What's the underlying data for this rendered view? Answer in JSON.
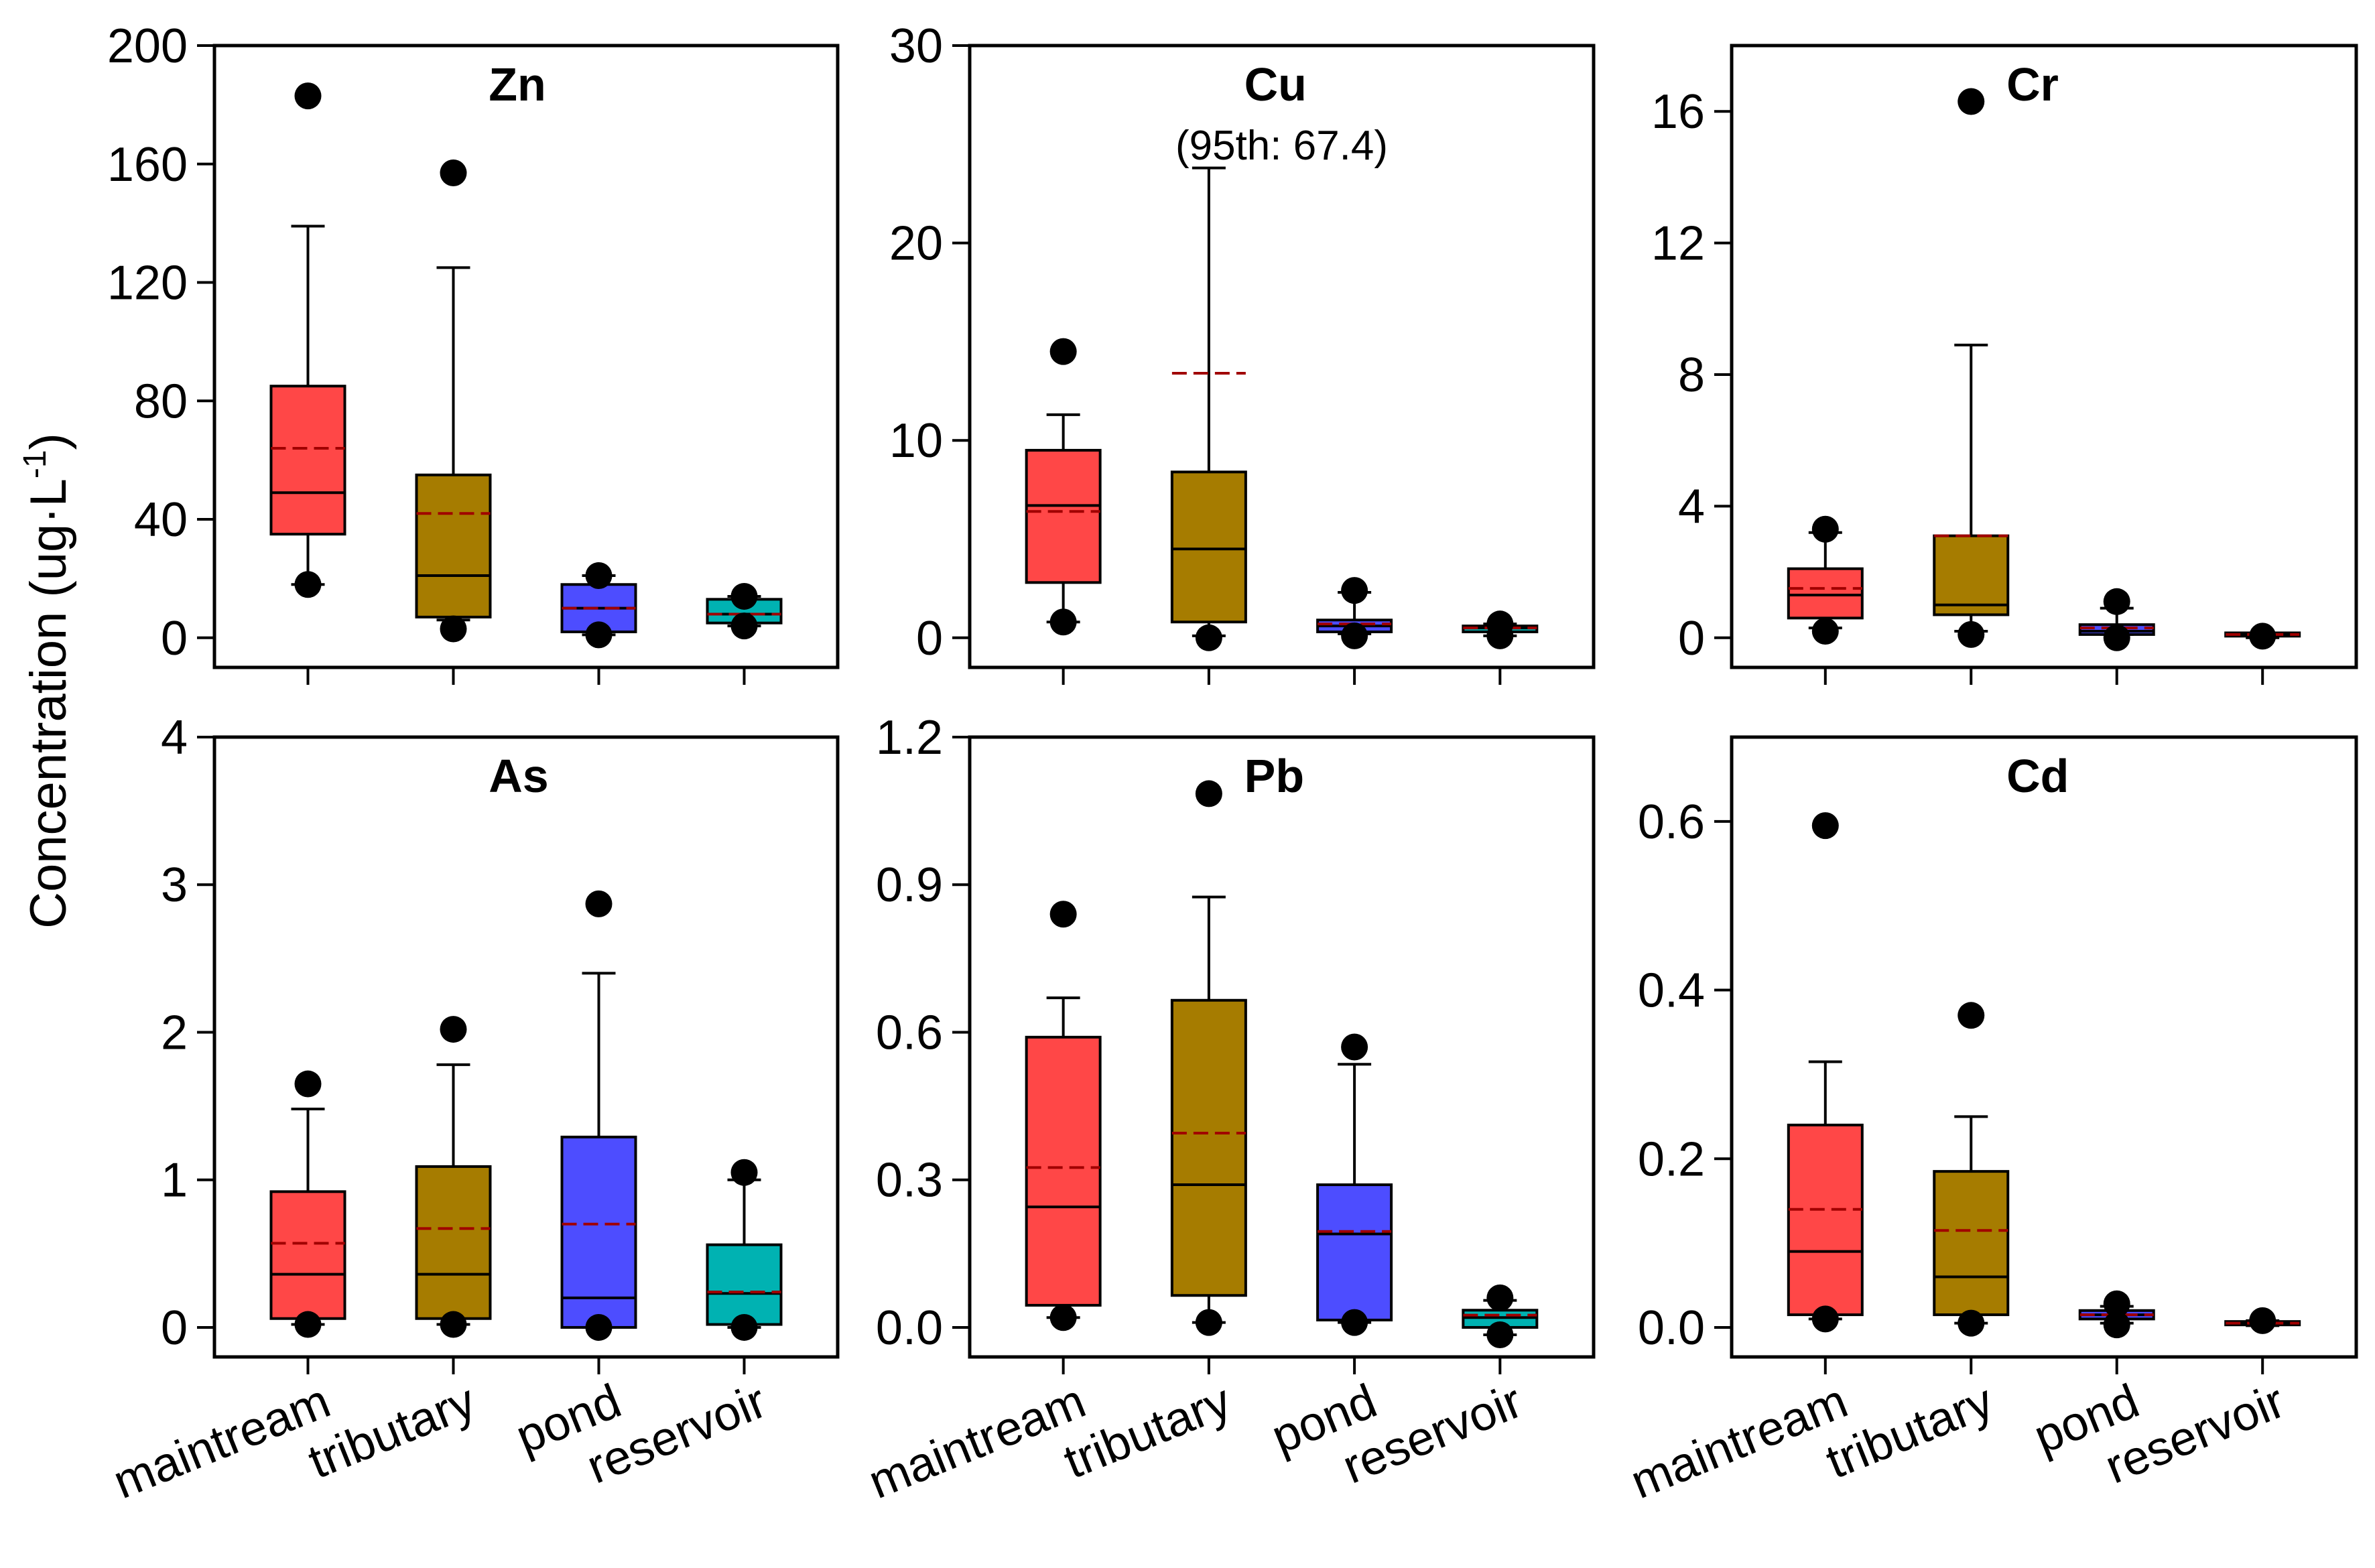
{
  "figure": {
    "ylabel": "Concentration (ug·L",
    "ylabel_sup": "-1",
    "ylabel_end": ")"
  },
  "chart_data": [
    {
      "type": "box",
      "title": "Zn",
      "categories": [
        "maintream",
        "tributary",
        "pond",
        "reservoir"
      ],
      "colors": [
        "#ff4747",
        "#a67c00",
        "#4d4dff",
        "#00b2b2"
      ],
      "ylim": [
        -10,
        200
      ],
      "yticks": [
        0,
        40,
        80,
        120,
        160,
        200
      ],
      "tick_labels": [
        "0",
        "40",
        "80",
        "120",
        "160",
        "200"
      ],
      "boxes": [
        {
          "whislo": 18,
          "q1": 35,
          "med": 49,
          "mean": 64,
          "q3": 85,
          "whishi": 139,
          "fliers": [
            18,
            183
          ]
        },
        {
          "whislo": 6,
          "q1": 7,
          "med": 21,
          "mean": 42,
          "q3": 55,
          "whishi": 125,
          "fliers": [
            3,
            157
          ]
        },
        {
          "whislo": 1,
          "q1": 2,
          "med": 10,
          "mean": 10,
          "q3": 18,
          "whishi": 21,
          "fliers": [
            1,
            21
          ]
        },
        {
          "whislo": 4,
          "q1": 5,
          "med": 8,
          "mean": 8,
          "q3": 13,
          "whishi": 14,
          "fliers": [
            4,
            14
          ]
        }
      ]
    },
    {
      "type": "box",
      "title": "Cu",
      "annotation": "(95th: 67.4)",
      "categories": [
        "maintream",
        "tributary",
        "pond",
        "reservoir"
      ],
      "colors": [
        "#ff4747",
        "#a67c00",
        "#4d4dff",
        "#00b2b2"
      ],
      "ylim": [
        -1.5,
        30
      ],
      "yticks": [
        0,
        10,
        20,
        30
      ],
      "tick_labels": [
        "0",
        "10",
        "20",
        "30"
      ],
      "boxes": [
        {
          "whislo": 0.8,
          "q1": 2.8,
          "med": 6.7,
          "mean": 6.4,
          "q3": 9.5,
          "whishi": 11.3,
          "fliers": [
            0.8,
            14.5
          ]
        },
        {
          "whislo": 0.1,
          "q1": 0.8,
          "med": 4.5,
          "mean": 13.4,
          "q3": 8.4,
          "whishi": 23.8,
          "fliers": [
            0.0
          ]
        },
        {
          "whislo": 0.2,
          "q1": 0.3,
          "med": 0.6,
          "mean": 0.7,
          "q3": 0.9,
          "whishi": 2.3,
          "fliers": [
            0.1,
            2.4
          ]
        },
        {
          "whislo": 0.1,
          "q1": 0.3,
          "med": 0.5,
          "mean": 0.5,
          "q3": 0.6,
          "whishi": 0.7,
          "fliers": [
            0.1,
            0.7
          ]
        }
      ]
    },
    {
      "type": "box",
      "title": "Cr",
      "categories": [
        "maintream",
        "tributary",
        "pond",
        "reservoir"
      ],
      "colors": [
        "#ff4747",
        "#a67c00",
        "#4d4dff",
        "#00b2b2"
      ],
      "ylim": [
        -0.9,
        18
      ],
      "yticks": [
        0,
        4,
        8,
        12,
        16
      ],
      "tick_labels": [
        "0",
        "4",
        "8",
        "12",
        "16"
      ],
      "boxes": [
        {
          "whislo": 0.3,
          "q1": 0.6,
          "med": 1.3,
          "mean": 1.5,
          "q3": 2.1,
          "whishi": 3.2,
          "fliers": [
            0.2,
            3.3
          ]
        },
        {
          "whislo": 0.2,
          "q1": 0.7,
          "med": 1.0,
          "mean": 3.1,
          "q3": 3.1,
          "whishi": 8.9,
          "fliers": [
            0.1,
            16.3
          ]
        },
        {
          "whislo": 0.1,
          "q1": 0.1,
          "med": 0.2,
          "mean": 0.3,
          "q3": 0.4,
          "whishi": 0.9,
          "fliers": [
            0.0,
            1.1
          ]
        },
        {
          "whislo": 0.0,
          "q1": 0.05,
          "med": 0.1,
          "mean": 0.1,
          "q3": 0.15,
          "whishi": 0.15,
          "fliers": [
            0.05
          ]
        }
      ]
    },
    {
      "type": "box",
      "title": "As",
      "categories": [
        "maintream",
        "tributary",
        "pond",
        "reservoir"
      ],
      "colors": [
        "#ff4747",
        "#a67c00",
        "#4d4dff",
        "#00b2b2"
      ],
      "ylim": [
        -0.2,
        4
      ],
      "yticks": [
        0,
        1,
        2,
        3,
        4
      ],
      "tick_labels": [
        "0",
        "1",
        "2",
        "3",
        "4"
      ],
      "boxes": [
        {
          "whislo": 0.02,
          "q1": 0.06,
          "med": 0.36,
          "mean": 0.57,
          "q3": 0.92,
          "whishi": 1.48,
          "fliers": [
            0.02,
            1.65
          ]
        },
        {
          "whislo": 0.02,
          "q1": 0.06,
          "med": 0.36,
          "mean": 0.67,
          "q3": 1.09,
          "whishi": 1.78,
          "fliers": [
            0.02,
            2.02
          ]
        },
        {
          "whislo": 0.0,
          "q1": 0.0,
          "med": 0.2,
          "mean": 0.7,
          "q3": 1.29,
          "whishi": 2.4,
          "fliers": [
            0.0,
            2.87
          ]
        },
        {
          "whislo": 0.0,
          "q1": 0.02,
          "med": 0.23,
          "mean": 0.24,
          "q3": 0.56,
          "whishi": 1.0,
          "fliers": [
            0.0,
            1.05
          ]
        }
      ]
    },
    {
      "type": "box",
      "title": "Pb",
      "categories": [
        "maintream",
        "tributary",
        "pond",
        "reservoir"
      ],
      "colors": [
        "#ff4747",
        "#a67c00",
        "#4d4dff",
        "#00b2b2"
      ],
      "ylim": [
        -0.06,
        1.2
      ],
      "yticks": [
        0.0,
        0.3,
        0.6,
        0.9,
        1.2
      ],
      "tick_labels": [
        "0.0",
        "0.3",
        "0.6",
        "0.9",
        "1.2"
      ],
      "boxes": [
        {
          "whislo": 0.02,
          "q1": 0.045,
          "med": 0.245,
          "mean": 0.325,
          "q3": 0.59,
          "whishi": 0.67,
          "fliers": [
            0.02,
            0.84
          ]
        },
        {
          "whislo": 0.01,
          "q1": 0.065,
          "med": 0.29,
          "mean": 0.395,
          "q3": 0.665,
          "whishi": 0.875,
          "fliers": [
            0.01,
            1.085
          ]
        },
        {
          "whislo": 0.01,
          "q1": 0.015,
          "med": 0.19,
          "mean": 0.195,
          "q3": 0.29,
          "whishi": 0.535,
          "fliers": [
            0.01,
            0.57
          ]
        },
        {
          "whislo": -0.015,
          "q1": 0.0,
          "med": 0.02,
          "mean": 0.025,
          "q3": 0.035,
          "whishi": 0.055,
          "fliers": [
            -0.015,
            0.06
          ]
        }
      ]
    },
    {
      "type": "box",
      "title": "Cd",
      "categories": [
        "maintream",
        "tributary",
        "pond",
        "reservoir"
      ],
      "colors": [
        "#ff4747",
        "#a67c00",
        "#4d4dff",
        "#00b2b2"
      ],
      "ylim": [
        -0.035,
        0.7
      ],
      "yticks": [
        0.0,
        0.2,
        0.4,
        0.6
      ],
      "tick_labels": [
        "0.0",
        "0.2",
        "0.4",
        "0.6"
      ],
      "boxes": [
        {
          "whislo": 0.01,
          "q1": 0.015,
          "med": 0.09,
          "mean": 0.14,
          "q3": 0.24,
          "whishi": 0.315,
          "fliers": [
            0.01,
            0.595
          ]
        },
        {
          "whislo": 0.005,
          "q1": 0.015,
          "med": 0.06,
          "mean": 0.115,
          "q3": 0.185,
          "whishi": 0.25,
          "fliers": [
            0.005,
            0.37
          ]
        },
        {
          "whislo": 0.005,
          "q1": 0.01,
          "med": 0.015,
          "mean": 0.015,
          "q3": 0.02,
          "whishi": 0.025,
          "fliers": [
            0.003,
            0.028
          ]
        },
        {
          "whislo": 0.002,
          "q1": 0.003,
          "med": 0.005,
          "mean": 0.005,
          "q3": 0.007,
          "whishi": 0.008,
          "fliers": [
            0.008
          ]
        }
      ]
    }
  ]
}
